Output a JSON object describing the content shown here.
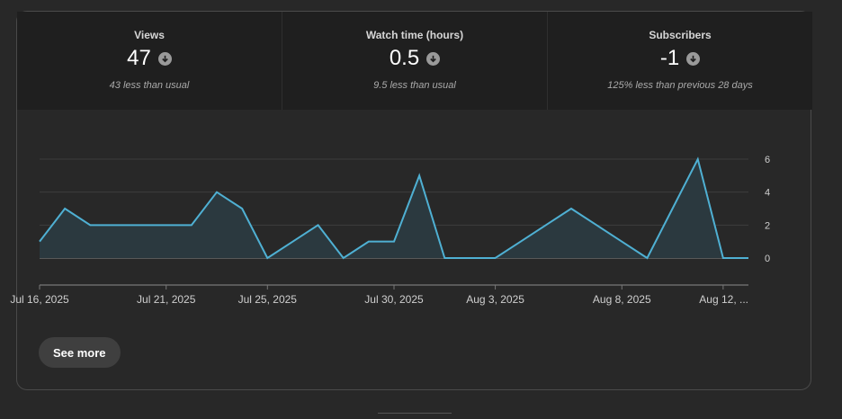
{
  "metrics": [
    {
      "label": "Views",
      "value": "47",
      "note": "43 less than usual",
      "icon": "arrow-down-circle-icon"
    },
    {
      "label": "Watch time (hours)",
      "value": "0.5",
      "note": "9.5 less than usual",
      "icon": "arrow-down-circle-icon"
    },
    {
      "label": "Subscribers",
      "value": "-1",
      "note": "125% less than previous 28 days",
      "icon": "arrow-down-circle-icon"
    }
  ],
  "colors": {
    "line": "#4fb0d3",
    "area": "#2b393f",
    "grid": "#3d3d3d",
    "baseline": "#8a8a8a"
  },
  "chart_data": {
    "type": "line",
    "ylim": [
      0,
      6
    ],
    "yticks": [
      "6",
      "4",
      "2",
      "0"
    ],
    "ytick_values": [
      6,
      4,
      2,
      0
    ],
    "values": [
      1,
      3,
      2,
      2,
      2,
      2,
      2,
      4,
      3,
      0,
      1,
      2,
      0,
      1,
      1,
      5,
      0,
      0,
      0,
      1,
      2,
      3,
      2,
      1,
      0,
      3,
      6,
      0,
      0
    ],
    "xtick_labels": [
      "Jul 16, 2025",
      "Jul 21, 2025",
      "Jul 25, 2025",
      "Jul 30, 2025",
      "Aug 3, 2025",
      "Aug 8, 2025",
      "Aug 12, ..."
    ],
    "xtick_index": [
      0,
      5,
      9,
      14,
      18,
      23,
      27
    ],
    "grid": true
  },
  "actions": {
    "see_more": "See more"
  }
}
